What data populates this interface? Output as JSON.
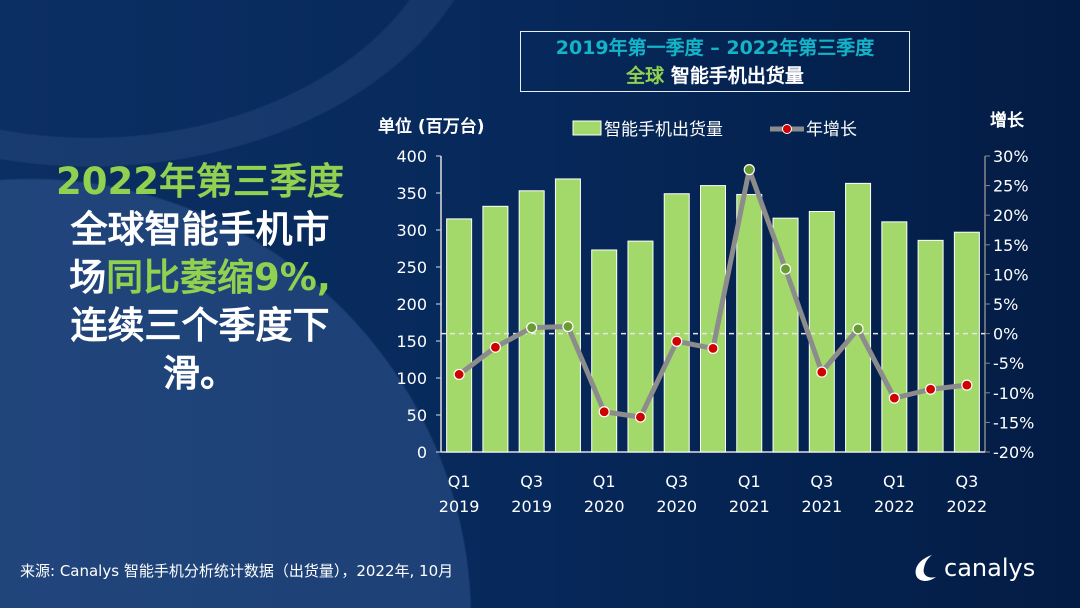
{
  "title": {
    "line1": "2019年第一季度 – 2022年第三季度",
    "line2_prefix": "全球",
    "line2": "智能手机出货量"
  },
  "headline": {
    "part1": "2022年第三季度",
    "part2": "全球智能手机市",
    "part3a": "场",
    "part3b": "同比萎缩9%,",
    "part4": "连续三个季度下",
    "part5": "滑。"
  },
  "footer": {
    "source": "来源: Canalys 智能手机分析统计数据（出货量），2022年, 10月"
  },
  "logo": {
    "text": "canalys"
  },
  "colors": {
    "bar": "#a2d96a",
    "line": "#8c8c8c",
    "negative_marker": "#d00000",
    "positive_marker": "#6a9a34",
    "highlight": "#92d050",
    "title_teal": "#14b4c8"
  },
  "chart_data": {
    "type": "bar+line",
    "ylabel": "单位 (百万台)",
    "y2label": "增长",
    "ylim": [
      0,
      400
    ],
    "y2lim": [
      -20,
      30
    ],
    "yticks": [
      "0",
      "50",
      "100",
      "150",
      "200",
      "250",
      "300",
      "350",
      "400"
    ],
    "y2ticks": [
      "-20%",
      "-15%",
      "-10%",
      "-5%",
      "0%",
      "5%",
      "10%",
      "15%",
      "20%",
      "25%",
      "30%"
    ],
    "categories": [
      "Q1 2019",
      "Q2 2019",
      "Q3 2019",
      "Q4 2019",
      "Q1 2020",
      "Q2 2020",
      "Q3 2020",
      "Q4 2020",
      "Q1 2021",
      "Q2 2021",
      "Q3 2021",
      "Q4 2021",
      "Q1 2022",
      "Q2 2022",
      "Q3 2022"
    ],
    "xtick_labels": [
      [
        "Q1",
        "2019"
      ],
      [
        "Q3",
        "2019"
      ],
      [
        "Q1",
        "2020"
      ],
      [
        "Q3",
        "2020"
      ],
      [
        "Q1",
        "2021"
      ],
      [
        "Q3",
        "2021"
      ],
      [
        "Q1",
        "2022"
      ],
      [
        "Q3",
        "2022"
      ]
    ],
    "series": [
      {
        "name": "智能手机出货量",
        "type": "bar",
        "axis": "left",
        "values": [
          315,
          332,
          353,
          369,
          273,
          285,
          349,
          360,
          348,
          316,
          325,
          363,
          311,
          286,
          297
        ]
      },
      {
        "name": "年增长",
        "type": "line",
        "axis": "right",
        "values": [
          -6.9,
          -2.3,
          1.0,
          1.2,
          -13.2,
          -14.1,
          -1.3,
          -2.5,
          27.7,
          10.9,
          -6.5,
          0.8,
          -10.9,
          -9.4,
          -8.7
        ]
      }
    ],
    "legend": "top-center",
    "grid": false,
    "zero_line": "dashed"
  }
}
